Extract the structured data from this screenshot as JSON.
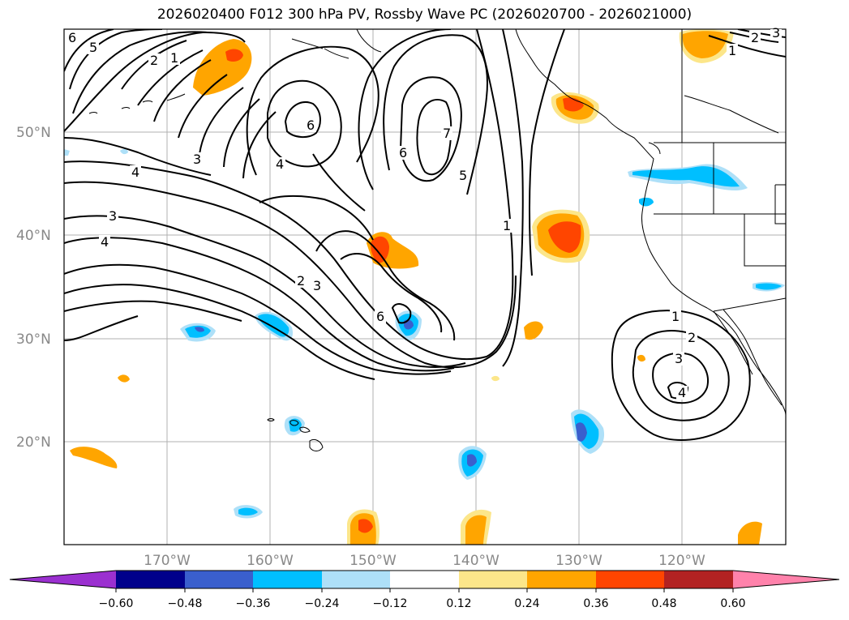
{
  "title": "2026020400 F012 300 hPa PV, Rossby Wave PC (2026020700 - 2026021000)",
  "map": {
    "lat_labels": [
      "50°N",
      "40°N",
      "30°N",
      "20°N"
    ],
    "lon_labels": [
      "170°W",
      "160°W",
      "150°W",
      "140°W",
      "130°W",
      "120°W"
    ]
  },
  "contour_labels": {
    "a": "6",
    "b": "5",
    "c": "2",
    "d": "1",
    "e": "6",
    "f": "4",
    "g": "3",
    "h": "4",
    "i": "3",
    "j": "4",
    "k": "6",
    "l": "7",
    "m": "5",
    "n": "1",
    "o": "2",
    "p": "3",
    "q": "6",
    "r": "1",
    "s": "2",
    "t": "3",
    "u": "4",
    "v": "1",
    "w": "2",
    "x": "3"
  },
  "colorbar": {
    "ticks": [
      "−0.60",
      "−0.48",
      "−0.36",
      "−0.24",
      "−0.12",
      "0.12",
      "0.24",
      "0.36",
      "0.48",
      "0.60"
    ],
    "colors": {
      "lt_min": "#9b30d0",
      "c1": "#00008b",
      "c2": "#3a5fcd",
      "c3": "#00bfff",
      "c4": "#aee0f8",
      "c5": "#ffffff",
      "c6": "#fce68a",
      "c7": "#ffa500",
      "c8": "#ff4500",
      "c9": "#b22222",
      "gt_max": "#ff82ab"
    }
  }
}
